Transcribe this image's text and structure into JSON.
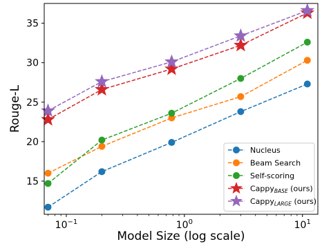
{
  "chart_data": {
    "type": "line",
    "xlabel": "Model Size (log scale)",
    "ylabel": "Rouge-L",
    "xscale": "log",
    "xlim": [
      0.065,
      13.5
    ],
    "ylim": [
      10.8,
      37.5
    ],
    "xticks": [
      {
        "value": 0.1,
        "base": "10",
        "exp": "−1"
      },
      {
        "value": 1,
        "base": "10",
        "exp": "0"
      },
      {
        "value": 10,
        "base": "10",
        "exp": "1"
      }
    ],
    "yticks": [
      15,
      20,
      25,
      30,
      35
    ],
    "grid": false,
    "legend_position": "lower-right",
    "x": [
      0.07,
      0.2,
      0.78,
      3,
      11
    ],
    "series": [
      {
        "name": "Nucleus",
        "name_sub": "",
        "name_suffix": "",
        "color": "#1f77b4",
        "marker": "circle",
        "values": [
          11.7,
          16.2,
          19.9,
          23.8,
          27.3
        ]
      },
      {
        "name": "Beam Search",
        "name_sub": "",
        "name_suffix": "",
        "color": "#ff7f0e",
        "marker": "circle",
        "values": [
          16.0,
          19.4,
          23.0,
          25.7,
          30.3
        ]
      },
      {
        "name": "Self-scoring",
        "name_sub": "",
        "name_suffix": "",
        "color": "#2ca02c",
        "marker": "circle",
        "values": [
          14.7,
          20.2,
          23.6,
          28.0,
          32.6
        ]
      },
      {
        "name": "Cappy",
        "name_sub": "BASE",
        "name_suffix": " (ours)",
        "color": "#d62728",
        "marker": "star",
        "values": [
          22.8,
          26.6,
          29.2,
          32.2,
          36.3
        ]
      },
      {
        "name": "Cappy",
        "name_sub": "LARGE",
        "name_suffix": " (ours)",
        "color": "#9467bd",
        "marker": "star",
        "values": [
          23.9,
          27.6,
          30.1,
          33.4,
          36.6
        ]
      }
    ]
  }
}
